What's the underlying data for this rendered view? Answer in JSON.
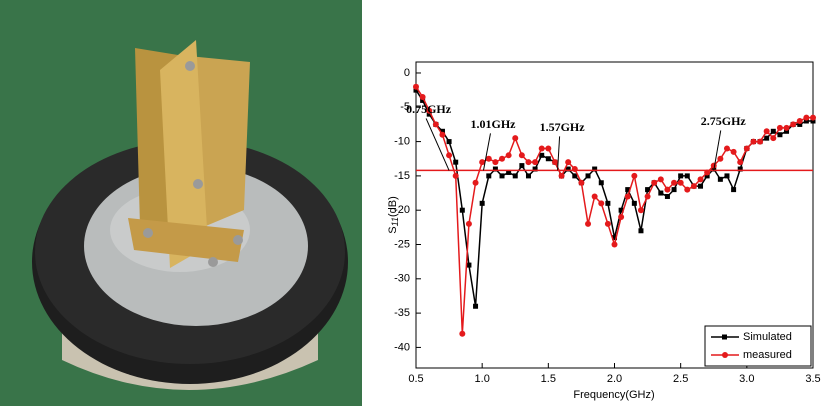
{
  "chart_data": {
    "type": "line",
    "x_label": "Frequency(GHz)",
    "y_label": [
      "S",
      "11",
      "(dB)"
    ],
    "x": [
      0.5,
      0.55,
      0.6,
      0.65,
      0.7,
      0.75,
      0.8,
      0.85,
      0.9,
      0.95,
      1.0,
      1.05,
      1.1,
      1.15,
      1.2,
      1.25,
      1.3,
      1.35,
      1.4,
      1.45,
      1.5,
      1.55,
      1.6,
      1.65,
      1.7,
      1.75,
      1.8,
      1.85,
      1.9,
      1.95,
      2.0,
      2.05,
      2.1,
      2.15,
      2.2,
      2.25,
      2.3,
      2.35,
      2.4,
      2.45,
      2.5,
      2.55,
      2.6,
      2.65,
      2.7,
      2.75,
      2.8,
      2.85,
      2.9,
      2.95,
      3.0,
      3.05,
      3.1,
      3.15,
      3.2,
      3.25,
      3.3,
      3.35,
      3.4,
      3.45,
      3.5
    ],
    "series": [
      {
        "name": "Simulated",
        "color": "#000000",
        "marker": "square",
        "values": [
          -2.5,
          -4,
          -6,
          -7.5,
          -8.5,
          -10,
          -13,
          -20,
          -28,
          -34,
          -19,
          -15,
          -14,
          -15,
          -14.5,
          -15,
          -13.5,
          -15,
          -14,
          -12,
          -12.5,
          -13,
          -15,
          -14,
          -15,
          -16,
          -15,
          -14,
          -16,
          -19,
          -24,
          -20,
          -17,
          -19,
          -23,
          -17,
          -16,
          -17.5,
          -18,
          -17,
          -15,
          -15,
          -16.5,
          -16.5,
          -15,
          -14,
          -15.5,
          -15,
          -17,
          -14,
          -11,
          -10,
          -10,
          -9.5,
          -8.5,
          -9,
          -8.5,
          -7.5,
          -7.5,
          -7,
          -7
        ]
      },
      {
        "name": "measured",
        "color": "#e41a1c",
        "marker": "circle",
        "values": [
          -2,
          -3.5,
          -5.5,
          -7.5,
          -9,
          -12,
          -15,
          -38,
          -22,
          -16,
          -13,
          -12.5,
          -13,
          -12.5,
          -12,
          -9.5,
          -12,
          -13,
          -13,
          -11,
          -11,
          -13,
          -15,
          -13,
          -14,
          -16,
          -22,
          -18,
          -19,
          -22,
          -25,
          -21,
          -18,
          -15,
          -20,
          -18,
          -16,
          -15.5,
          -17,
          -16,
          -16,
          -17,
          -16.5,
          -15.5,
          -14.5,
          -13.5,
          -12.5,
          -11,
          -11.5,
          -13,
          -11,
          -10,
          -10,
          -8.5,
          -9.5,
          -8,
          -8,
          -7.5,
          -7,
          -6.5,
          -6.5
        ]
      }
    ],
    "hline": {
      "value": -14.2,
      "color": "#e41a1c"
    },
    "annotations": [
      {
        "text": "0.75GHz",
        "x": 0.75,
        "y": -14.2
      },
      {
        "text": "1.01GHz",
        "x": 1.01,
        "y": -14.2
      },
      {
        "text": "1.57GHz",
        "x": 1.57,
        "y": -14.2
      },
      {
        "text": "2.75GHz",
        "x": 2.75,
        "y": -14.2
      }
    ],
    "xlim": [
      0.5,
      3.5
    ],
    "xticks": [
      0.5,
      {
        "value": 1,
        "label": "1.0"
      },
      1.5,
      {
        "value": 2,
        "label": "2.0"
      },
      2.5,
      {
        "value": 3,
        "label": "3.0"
      },
      3.5
    ],
    "ylim": [
      -43,
      1.6
    ],
    "yticks": [
      0,
      -5,
      -10,
      -15,
      -20,
      -25,
      -30,
      -35,
      -40
    ],
    "grid": false,
    "legend": "lower right"
  }
}
